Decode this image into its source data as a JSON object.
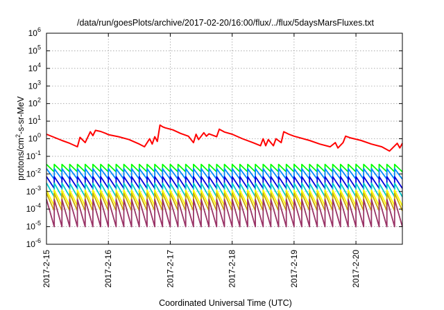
{
  "chart_data": {
    "type": "line",
    "title": "/data/run/goesPlots/archive/2017-02-20/16:00/flux/../flux/5daysMarsFluxes.txt",
    "xlabel": "Coordinated Universal Time (UTC)",
    "ylabel": "protons/cm2-s-sr-MeV",
    "ylabel_parts": {
      "pre": "protons/cm",
      "sup": "2",
      "post": "-s-sr-MeV"
    },
    "x_scale": "time",
    "x_range": [
      "2017-02-15 00:00",
      "2017-02-20 18:00"
    ],
    "x_ticks": [
      "2017-2-15",
      "2017-2-16",
      "2017-2-17",
      "2017-2-18",
      "2017-2-19",
      "2017-2-20"
    ],
    "y_scale": "log",
    "ylim": [
      1e-06,
      1000000.0
    ],
    "y_ticks": [
      {
        "base": "10",
        "exp": "-6"
      },
      {
        "base": "10",
        "exp": "-5"
      },
      {
        "base": "10",
        "exp": "-4"
      },
      {
        "base": "10",
        "exp": "-3"
      },
      {
        "base": "10",
        "exp": "-2"
      },
      {
        "base": "10",
        "exp": "-1"
      },
      {
        "base": "10",
        "exp": "0"
      },
      {
        "base": "10",
        "exp": "1"
      },
      {
        "base": "10",
        "exp": "2"
      },
      {
        "base": "10",
        "exp": "3"
      },
      {
        "base": "10",
        "exp": "4"
      },
      {
        "base": "10",
        "exp": "5"
      },
      {
        "base": "10",
        "exp": "6"
      }
    ],
    "grid": true,
    "legend": "none",
    "series": [
      {
        "color": "#ff0000",
        "x": [
          "2017-02-15 00:00",
          "2017-02-15 03:00",
          "2017-02-15 06:00",
          "2017-02-15 09:00",
          "2017-02-15 12:00",
          "2017-02-15 13:00",
          "2017-02-15 15:00",
          "2017-02-15 17:00",
          "2017-02-15 18:00",
          "2017-02-15 19:00",
          "2017-02-15 21:00",
          "2017-02-15 23:00",
          "2017-02-16 00:00",
          "2017-02-16 04:00",
          "2017-02-16 08:00",
          "2017-02-16 12:00",
          "2017-02-16 14:00",
          "2017-02-16 16:00",
          "2017-02-16 17:00",
          "2017-02-16 18:00",
          "2017-02-16 19:00",
          "2017-02-16 20:00",
          "2017-02-16 21:00",
          "2017-02-16 22:00",
          "2017-02-17 01:00",
          "2017-02-17 04:00",
          "2017-02-17 07:00",
          "2017-02-17 09:00",
          "2017-02-17 10:00",
          "2017-02-17 11:00",
          "2017-02-17 13:00",
          "2017-02-17 14:00",
          "2017-02-17 15:00",
          "2017-02-17 18:00",
          "2017-02-17 19:00",
          "2017-02-17 21:00",
          "2017-02-18 00:00",
          "2017-02-18 04:00",
          "2017-02-18 08:00",
          "2017-02-18 11:00",
          "2017-02-18 12:00",
          "2017-02-18 13:00",
          "2017-02-18 14:00",
          "2017-02-18 16:00",
          "2017-02-18 17:00",
          "2017-02-18 19:00",
          "2017-02-18 20:00",
          "2017-02-18 22:00",
          "2017-02-19 00:00",
          "2017-02-19 06:00",
          "2017-02-19 10:00",
          "2017-02-19 14:00",
          "2017-02-19 16:00",
          "2017-02-19 17:00",
          "2017-02-19 19:00",
          "2017-02-19 20:00",
          "2017-02-19 22:00",
          "2017-02-20 02:00",
          "2017-02-20 06:00",
          "2017-02-20 10:00",
          "2017-02-20 13:00",
          "2017-02-20 16:00",
          "2017-02-20 17:00",
          "2017-02-20 18:00"
        ],
        "y": [
          1.8,
          1.2,
          0.8,
          0.55,
          0.35,
          1.2,
          0.6,
          2.5,
          1.5,
          3.0,
          2.6,
          2.0,
          1.7,
          1.3,
          0.9,
          0.5,
          0.35,
          1.0,
          0.5,
          1.3,
          0.7,
          6.0,
          4.8,
          4.2,
          3.2,
          2.0,
          1.4,
          0.6,
          1.8,
          0.9,
          2.2,
          1.4,
          1.9,
          1.3,
          3.5,
          2.4,
          1.8,
          1.0,
          0.6,
          0.4,
          1.0,
          0.4,
          0.9,
          0.4,
          1.0,
          0.6,
          2.5,
          1.8,
          1.4,
          0.8,
          0.5,
          0.35,
          0.6,
          0.3,
          0.6,
          1.4,
          1.1,
          0.8,
          0.5,
          0.35,
          0.2,
          0.55,
          0.3,
          0.55
        ]
      },
      {
        "color": "#00ff00",
        "x_start": "2017-02-15 00:00",
        "x_step_hours": 3,
        "peak": 0.035,
        "trough": 0.013,
        "count": 47
      },
      {
        "color": "#0088ff",
        "x_start": "2017-02-15 00:00",
        "x_step_hours": 3,
        "peak": 0.02,
        "trough": 0.005,
        "count": 47
      },
      {
        "color": "#0000dd",
        "x_start": "2017-02-15 00:00",
        "x_step_hours": 3,
        "peak": 0.007,
        "trough": 0.0015,
        "count": 47
      },
      {
        "color": "#00cccc",
        "x_start": "2017-02-15 00:00",
        "x_step_hours": 3,
        "peak": 0.003,
        "trough": 0.0005,
        "count": 47
      },
      {
        "color": "#ffff00",
        "x_start": "2017-02-15 00:00",
        "x_step_hours": 3,
        "peak": 0.0012,
        "trough": 0.00015,
        "count": 47
      },
      {
        "color": "#ccaa00",
        "x_start": "2017-02-15 00:00",
        "x_step_hours": 3,
        "peak": 0.0008,
        "trough": 8e-05,
        "count": 47
      },
      {
        "color": "#993366",
        "x_start": "2017-02-15 00:00",
        "x_step_hours": 3,
        "peak": 0.00035,
        "trough": 1e-05,
        "count": 47
      }
    ]
  }
}
